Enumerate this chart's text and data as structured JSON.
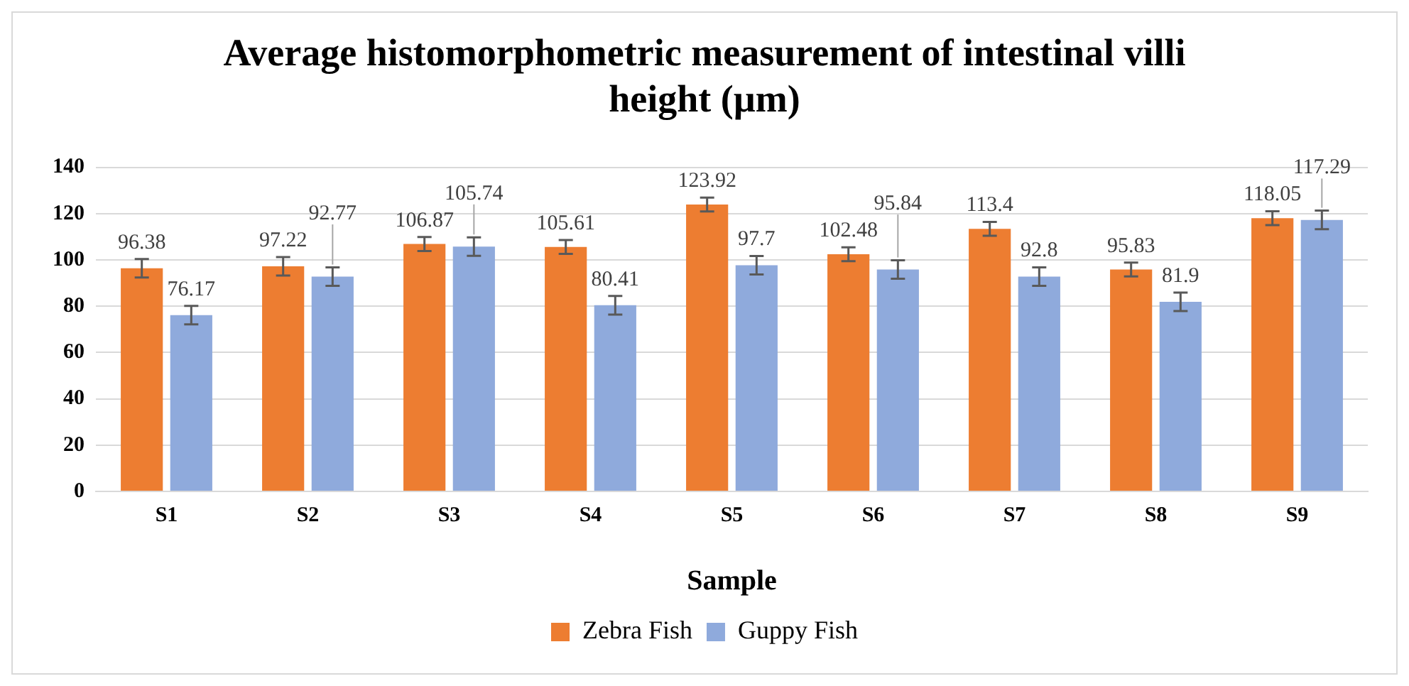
{
  "chart_data": {
    "type": "bar",
    "title": "Average histomorphometric measurement of intestinal villi height (µm)",
    "xlabel": "Sample",
    "categories": [
      "S1",
      "S2",
      "S3",
      "S4",
      "S5",
      "S6",
      "S7",
      "S8",
      "S9"
    ],
    "series": [
      {
        "name": "Zebra Fish",
        "color": "#ed7d31",
        "values": [
          96.38,
          97.22,
          106.87,
          105.61,
          123.92,
          102.48,
          113.4,
          95.83,
          118.05
        ],
        "errors": [
          4,
          4,
          3,
          3,
          3,
          3,
          3,
          3,
          3
        ]
      },
      {
        "name": "Guppy Fish",
        "color": "#8faadc",
        "values": [
          76.17,
          92.77,
          105.74,
          80.41,
          97.7,
          95.84,
          92.8,
          81.9,
          117.29
        ],
        "errors": [
          4,
          4,
          4,
          4,
          4,
          4,
          4,
          4,
          4
        ]
      }
    ],
    "ylim": [
      0,
      140
    ],
    "yticks": [
      0,
      20,
      40,
      60,
      80,
      100,
      120,
      140
    ],
    "grid": "y",
    "legend": "bottom",
    "data_labels": true
  }
}
